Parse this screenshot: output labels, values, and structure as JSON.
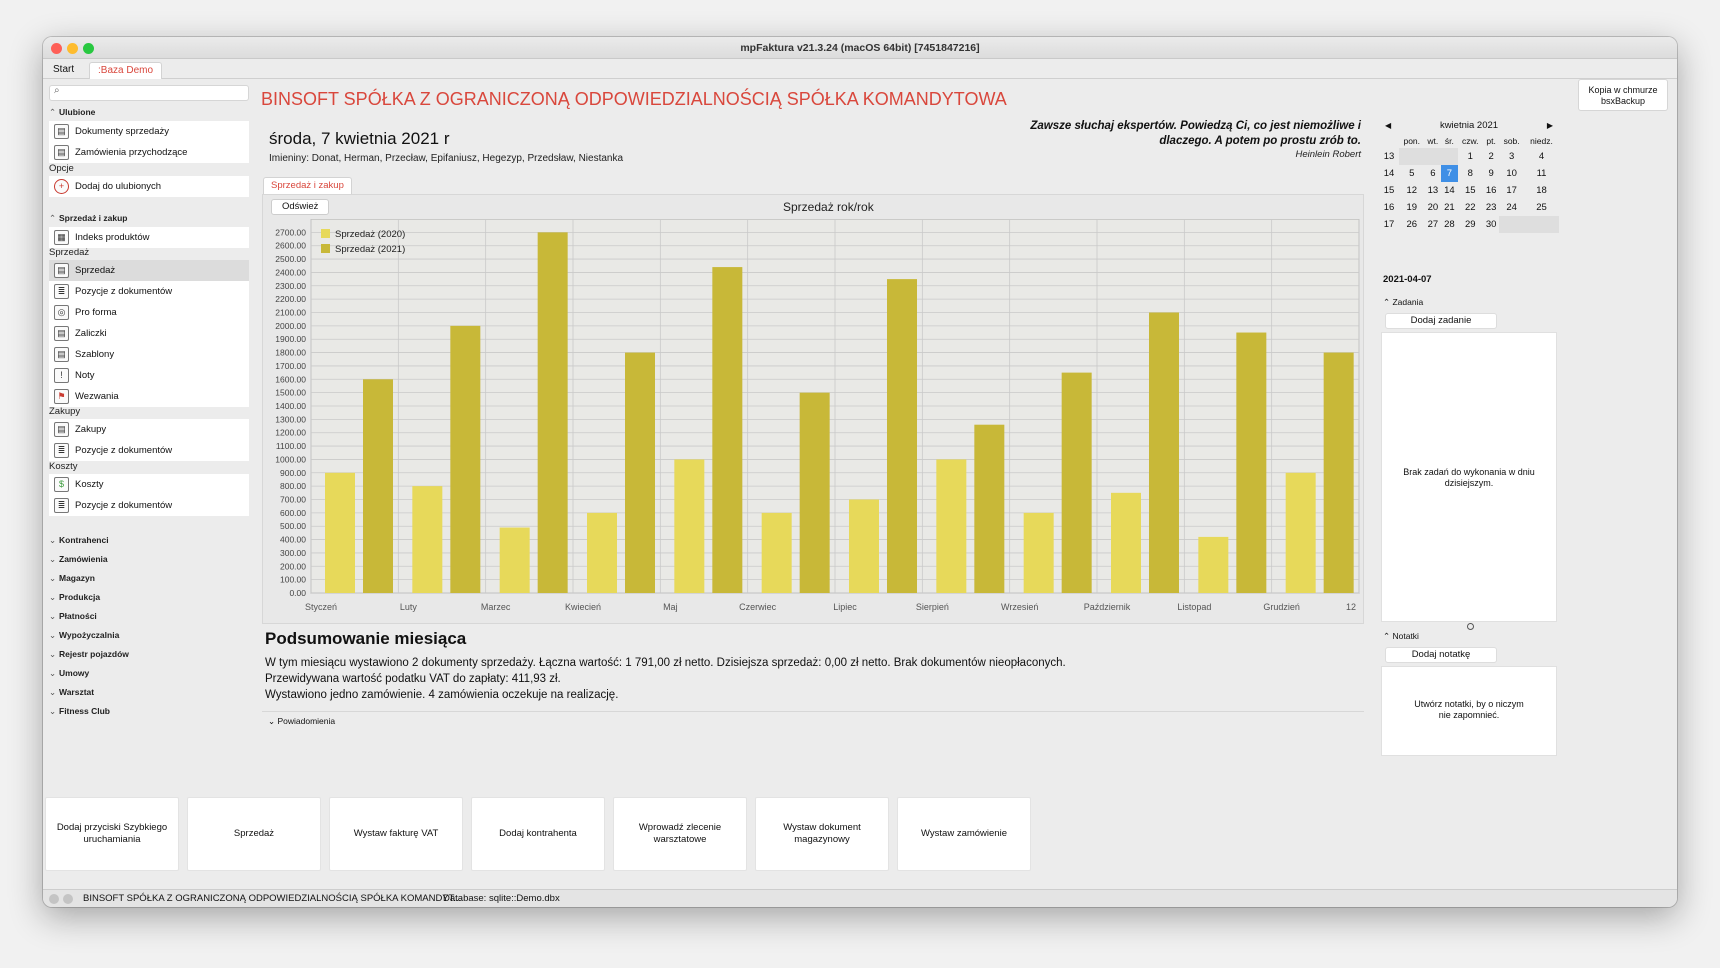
{
  "window": {
    "title": "mpFaktura v21.3.24 (macOS 64bit) [7451847216]",
    "colors": {
      "close": "#fe5f57",
      "minimize": "#febc2e",
      "zoom": "#28c840",
      "accent": "#d9473c",
      "bar2020": "#e7d95a",
      "bar2021": "#c8b838",
      "selected_day": "#3f8fe6"
    }
  },
  "tabs": [
    {
      "label": "Start"
    },
    {
      "label": ":Baza Demo"
    }
  ],
  "sidebar": {
    "sections": {
      "ulubione": "Ulubione",
      "opcje": "Opcje",
      "sprzedaz_zakup": "Sprzedaż i zakup",
      "sprzedaz": "Sprzedaż",
      "zakupy": "Zakupy",
      "koszty": "Koszty"
    },
    "favorites": [
      "Dokumenty sprzedaży",
      "Zamówienia przychodzące"
    ],
    "add_favorite": "Dodaj do ulubionych",
    "product_index": "Indeks produktów",
    "sales_items": [
      "Sprzedaż",
      "Pozycje z dokumentów",
      "Pro forma",
      "Zaliczki",
      "Szablony",
      "Noty",
      "Wezwania"
    ],
    "purchase_items": [
      "Zakupy",
      "Pozycje z dokumentów"
    ],
    "cost_items": [
      "Koszty",
      "Pozycje z dokumentów"
    ],
    "collapsed": [
      "Kontrahenci",
      "Zamówienia",
      "Magazyn",
      "Produkcja",
      "Płatności",
      "Wypożyczalnia",
      "Rejestr pojazdów",
      "Umowy",
      "Warsztat",
      "Fitness Club"
    ]
  },
  "main": {
    "company": "BINSOFT SPÓŁKA Z OGRANICZONĄ ODPOWIEDZIALNOŚCIĄ SPÓŁKA KOMANDYTOWA",
    "cloud_button": "Kopia w chmurze bsxBackup",
    "date": "środa, 7 kwietnia 2021 r",
    "names": "Imieniny: Donat, Herman, Przecław, Epifaniusz, Hegezyp, Przedsław, Niestanka",
    "quote": "Zawsze słuchaj ekspertów. Powiedzą Ci, co jest niemożliwe i dlaczego. A potem po prostu zrób to.",
    "quote_author": "Heinlein Robert",
    "subtab": "Sprzedaż i zakup",
    "refresh": "Odśwież",
    "summary_title": "Podsumowanie miesiąca",
    "summary_line1": "W tym miesiącu wystawiono 2 dokumenty sprzedaży. Łączna wartość: 1 791,00 zł netto. Dzisiejsza sprzedaż: 0,00 zł netto. Brak dokumentów nieopłaconych.",
    "summary_line2": "Przewidywana wartość podatku VAT do zapłaty: 411,93 zł.",
    "summary_line3": "Wystawiono jedno zamówienie. 4 zamówienia oczekuje na realizację.",
    "notifications": "Powiadomienia"
  },
  "chart_data": {
    "type": "bar",
    "title": "Sprzedaż rok/rok",
    "categories": [
      "Styczeń",
      "Luty",
      "Marzec",
      "Kwiecień",
      "Maj",
      "Czerwiec",
      "Lipiec",
      "Sierpień",
      "Wrzesień",
      "Październik",
      "Listopad",
      "Grudzień"
    ],
    "extra_tick": "12",
    "series": [
      {
        "name": "Sprzedaż (2020)",
        "values": [
          900,
          800,
          490,
          600,
          1000,
          600,
          700,
          1000,
          600,
          750,
          420,
          900
        ]
      },
      {
        "name": "Sprzedaż (2021)",
        "values": [
          1600,
          2000,
          2700,
          1800,
          2440,
          1500,
          2350,
          1260,
          1650,
          2100,
          1950,
          1800
        ]
      }
    ],
    "ylim": [
      0,
      2800
    ],
    "yticks": [
      "2700.00",
      "2600.00",
      "2500.00",
      "2400.00",
      "2300.00",
      "2200.00",
      "2100.00",
      "2000.00",
      "1900.00",
      "1800.00",
      "1700.00",
      "1600.00",
      "1500.00",
      "1400.00",
      "1300.00",
      "1200.00",
      "1100.00",
      "1000.00",
      "900.00",
      "800.00",
      "700.00",
      "600.00",
      "500.00",
      "400.00",
      "300.00",
      "200.00",
      "100.00",
      "0.00"
    ],
    "grid": true,
    "legend": "top-left"
  },
  "calendar": {
    "month_label": "kwietnia",
    "year_label": "2021",
    "weekdays": [
      "pon.",
      "wt.",
      "śr.",
      "czw.",
      "pt.",
      "sob.",
      "niedz."
    ],
    "weeks": [
      {
        "wk": "13",
        "days": [
          "",
          "",
          "",
          "1",
          "2",
          "3",
          "4"
        ]
      },
      {
        "wk": "14",
        "days": [
          "5",
          "6",
          "7",
          "8",
          "9",
          "10",
          "11"
        ]
      },
      {
        "wk": "15",
        "days": [
          "12",
          "13",
          "14",
          "15",
          "16",
          "17",
          "18"
        ]
      },
      {
        "wk": "16",
        "days": [
          "19",
          "20",
          "21",
          "22",
          "23",
          "24",
          "25"
        ]
      },
      {
        "wk": "17",
        "days": [
          "26",
          "27",
          "28",
          "29",
          "30",
          "",
          ""
        ]
      }
    ],
    "selected": "7",
    "selected_date": "2021-04-07"
  },
  "tasks": {
    "title": "Zadania",
    "add": "Dodaj zadanie",
    "empty": "Brak zadań do wykonania w dniu dzisiejszym."
  },
  "notes": {
    "title": "Notatki",
    "add": "Dodaj notatkę",
    "empty": "Utwórz notatki, by o niczym nie zapomnieć."
  },
  "quick_buttons": [
    "Dodaj przyciski Szybkiego uruchamiania",
    "Sprzedaż",
    "Wystaw fakturę VAT",
    "Dodaj kontrahenta",
    "Wprowadź zlecenie warsztatowe",
    "Wystaw dokument magazynowy",
    "Wystaw zamówienie"
  ],
  "status": {
    "company": "BINSOFT SPÓŁKA Z OGRANICZONĄ ODPOWIEDZIALNOŚCIĄ SPÓŁKA KOMANDYT...",
    "database": "Database: sqlite::Demo.dbx"
  }
}
